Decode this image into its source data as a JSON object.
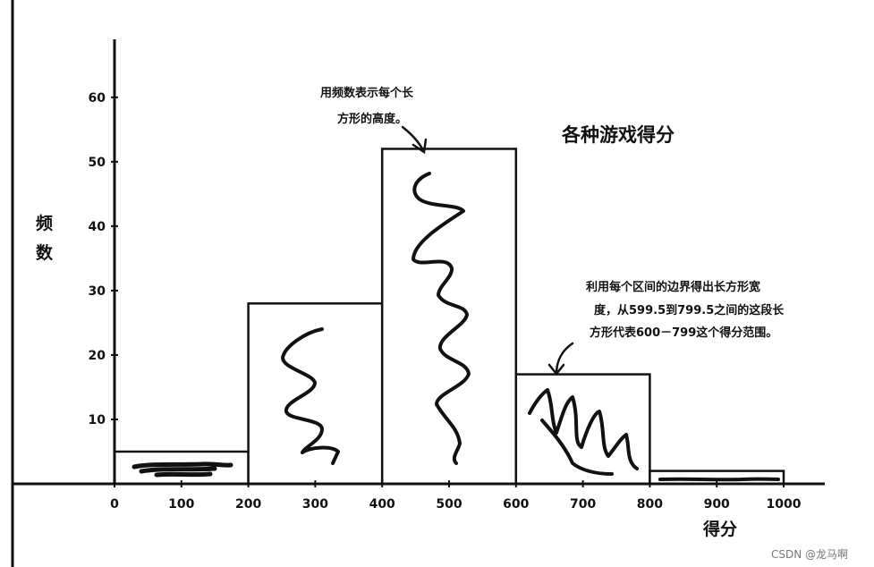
{
  "chart_data": {
    "type": "bar",
    "title": "各种游戏得分",
    "xlabel": "得分",
    "ylabel": [
      "频",
      "数"
    ],
    "bins": [
      [
        0,
        200
      ],
      [
        200,
        400
      ],
      [
        400,
        600
      ],
      [
        600,
        800
      ],
      [
        800,
        1000
      ]
    ],
    "values": [
      5,
      28,
      52,
      17,
      2
    ],
    "x_ticks": [
      "0",
      "100",
      "200",
      "300",
      "400",
      "500",
      "600",
      "700",
      "800",
      "900",
      "1000"
    ],
    "y_ticks": [
      "10",
      "20",
      "30",
      "40",
      "50",
      "60"
    ],
    "xlim": [
      0,
      1000
    ],
    "ylim": [
      0,
      69
    ],
    "grid": false,
    "annotations": [
      {
        "lines": [
          "用频数表示每个长",
          "方形的高度。"
        ]
      },
      {
        "lines": [
          "利用每个区间的边界得出长方形宽",
          "度，从599.5到799.5之间的这段长",
          "方形代表600－799这个得分范围。"
        ]
      }
    ]
  },
  "watermark": "CSDN @龙马啊"
}
